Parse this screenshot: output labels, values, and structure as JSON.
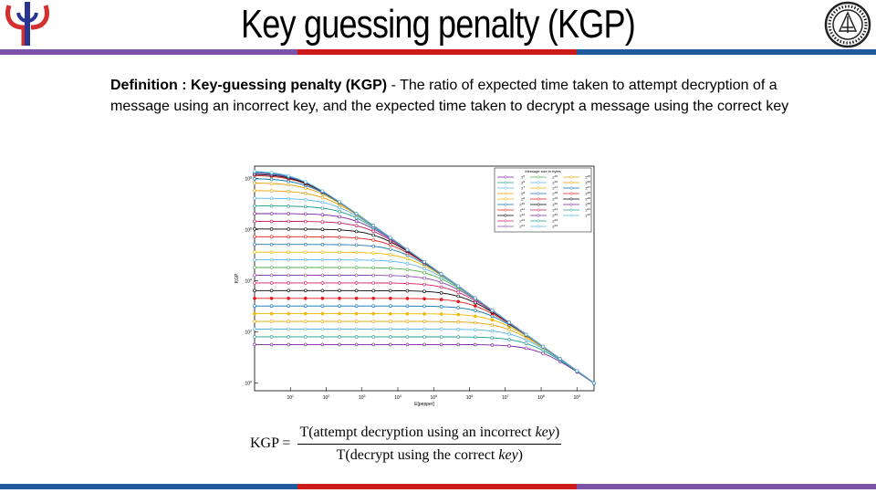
{
  "slide": {
    "title": "Key guessing penalty (KGP)",
    "definition_lead": "Definition : Key-guessing penalty (KGP)",
    "definition_body": " - The ratio of expected time taken to attempt decryption of a message using an incorrect key, and the expected time taken to decrypt a message using the correct key"
  },
  "logos": {
    "left": "psi-logo",
    "right": "institute-seal"
  },
  "formula": {
    "lhs": "KGP =",
    "numerator_prefix": "T(attempt decryption using an incorrect ",
    "numerator_var": "key",
    "numerator_suffix": ")",
    "denominator_prefix": "T(decrypt using the correct ",
    "denominator_var": "key",
    "denominator_suffix": ")"
  },
  "colors": {
    "purple": "#7b54a8",
    "red": "#cc1a1a",
    "blue": "#1f5a9c"
  },
  "chart_data": {
    "type": "line",
    "xlabel": "E[pepper]",
    "ylabel": "KGP",
    "xscale": "log",
    "yscale": "log",
    "xlim": [
      1,
      3000000000.0
    ],
    "ylim": [
      0.5,
      300000000.0
    ],
    "x_ticks": [
      "10^1",
      "10^2",
      "10^3",
      "10^4",
      "10^5",
      "10^6",
      "10^7",
      "10^8",
      "10^9"
    ],
    "y_ticks": [
      "10^0",
      "10^2",
      "10^4",
      "10^6",
      "10^8"
    ],
    "legend_title": "Message size in bytes",
    "legend_placement": "top-right",
    "grid": false,
    "series": [
      {
        "name": "2^5",
        "color": "#7b1fa2",
        "marker": "+",
        "plateau": 32
      },
      {
        "name": "2^6",
        "color": "#1a9c8c",
        "marker": "x",
        "plateau": 64
      },
      {
        "name": "2^7",
        "color": "#56b4e9",
        "marker": "star",
        "plateau": 128
      },
      {
        "name": "2^8",
        "color": "#e69f00",
        "marker": "square",
        "plateau": 256
      },
      {
        "name": "2^9",
        "color": "#f0b800",
        "marker": "square-filled",
        "plateau": 512
      },
      {
        "name": "2^10",
        "color": "#0072b2",
        "marker": "circle",
        "plateau": 1024
      },
      {
        "name": "2^11",
        "color": "#e41a1c",
        "marker": "circle-filled",
        "plateau": 2048
      },
      {
        "name": "2^12",
        "color": "#000000",
        "marker": "circle",
        "plateau": 4096
      },
      {
        "name": "2^13",
        "color": "#d81b60",
        "marker": "circle",
        "plateau": 8192
      },
      {
        "name": "2^14",
        "color": "#8e44ad",
        "marker": "circle",
        "plateau": 16384
      },
      {
        "name": "2^15",
        "color": "#4daf4a",
        "marker": "circle",
        "plateau": 32768
      },
      {
        "name": "2^16",
        "color": "#56b4e9",
        "marker": "circle",
        "plateau": 65536
      },
      {
        "name": "2^17",
        "color": "#f0b800",
        "marker": "circle",
        "plateau": 131072
      },
      {
        "name": "2^18",
        "color": "#1f78b4",
        "marker": "circle",
        "plateau": 262144
      },
      {
        "name": "2^19",
        "color": "#e31a1c",
        "marker": "circle",
        "plateau": 524288
      },
      {
        "name": "2^20",
        "color": "#000000",
        "marker": "circle",
        "plateau": 1048576
      },
      {
        "name": "2^21",
        "color": "#c2185b",
        "marker": "circle",
        "plateau": 2097152
      },
      {
        "name": "2^22",
        "color": "#7b1fa2",
        "marker": "circle",
        "plateau": 4194304
      },
      {
        "name": "2^23",
        "color": "#1a9c8c",
        "marker": "circle",
        "plateau": 8388608
      },
      {
        "name": "2^24",
        "color": "#56b4e9",
        "marker": "circle",
        "plateau": 16777216
      },
      {
        "name": "2^25",
        "color": "#e69f00",
        "marker": "circle",
        "plateau": 33554432
      },
      {
        "name": "2^26",
        "color": "#e69f00",
        "marker": "circle",
        "plateau": 67108864
      },
      {
        "name": "2^27",
        "color": "#0072b2",
        "marker": "circle",
        "plateau": 100000000
      },
      {
        "name": "2^28",
        "color": "#e41a1c",
        "marker": "circle",
        "plateau": 134217728
      },
      {
        "name": "2^29",
        "color": "#000000",
        "marker": "circle",
        "plateau": 150000000
      },
      {
        "name": "2^30",
        "color": "#7b1fa2",
        "marker": "circle",
        "plateau": 170000000
      },
      {
        "name": "2^31",
        "color": "#1a9c8c",
        "marker": "circle",
        "plateau": 185000000
      },
      {
        "name": "2^32",
        "color": "#56b4e9",
        "marker": "circle",
        "plateau": 200000000
      }
    ],
    "tail": {
      "x": 3000000000.0,
      "y": 1
    }
  }
}
